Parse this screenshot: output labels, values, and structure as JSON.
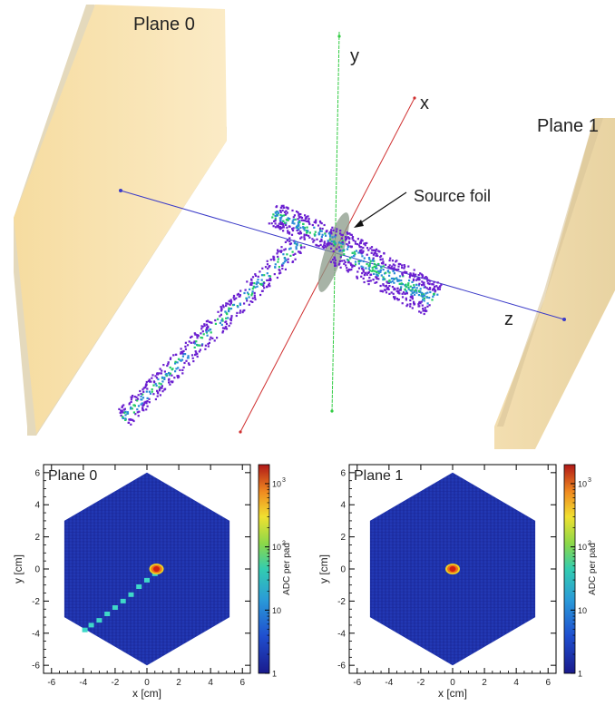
{
  "scene": {
    "labels": {
      "plane0": "Plane 0",
      "plane1": "Plane 1",
      "source_foil": "Source foil",
      "axis_x": "x",
      "axis_y": "y",
      "axis_z": "z"
    },
    "colors": {
      "plane": "#fbe7b9",
      "axis_x": "#cc2222",
      "axis_y": "#33cc33",
      "axis_z": "#3333cc",
      "foil": "#8a9a88",
      "hits": "#6a1fd0",
      "hits_core": "#2a8ad8",
      "hits_hot": "#22cc66"
    }
  },
  "panels": [
    {
      "title": "Plane 0",
      "xlabel": "x [cm]",
      "ylabel": "y [cm]",
      "zlabel": "ADC per pad",
      "xticks": [
        "-6",
        "-4",
        "-2",
        "0",
        "2",
        "4",
        "6"
      ],
      "yticks": [
        "6",
        "4",
        "2",
        "0",
        "-2",
        "-4",
        "-6"
      ],
      "zticks": [
        "1",
        "10",
        "10",
        "10"
      ],
      "zexps": [
        "",
        "",
        "2",
        "3"
      ],
      "xlim": [
        -6.5,
        6.5
      ],
      "ylim": [
        -6.5,
        6.5
      ],
      "hexagon_radius_cm": 6.0,
      "background_color": "#1a2a9a"
    },
    {
      "title": "Plane 1",
      "xlabel": "x [cm]",
      "ylabel": "y [cm]",
      "zlabel": "ADC per pad",
      "xticks": [
        "-6",
        "-4",
        "-2",
        "0",
        "2",
        "4",
        "6"
      ],
      "yticks": [
        "6",
        "4",
        "2",
        "0",
        "-2",
        "-4",
        "-6"
      ],
      "zticks": [
        "1",
        "10",
        "10",
        "10"
      ],
      "zexps": [
        "",
        "",
        "2",
        "3"
      ],
      "xlim": [
        -6.5,
        6.5
      ],
      "ylim": [
        -6.5,
        6.5
      ],
      "hexagon_radius_cm": 6.0,
      "background_color": "#1a2a9a"
    }
  ],
  "chart_data": [
    {
      "type": "heatmap",
      "title": "Plane 0",
      "xlabel": "x [cm]",
      "ylabel": "y [cm]",
      "zlabel": "ADC per pad",
      "xlim": [
        -6.5,
        6.5
      ],
      "ylim": [
        -6.5,
        6.5
      ],
      "zscale": "log",
      "zlim": [
        1,
        2000
      ],
      "hot_spot": {
        "x": 0.6,
        "y": 0.0,
        "peak_adc": 1000
      },
      "track": [
        {
          "x": 0.5,
          "y": -0.3,
          "adc": 60
        },
        {
          "x": 0.0,
          "y": -0.7,
          "adc": 40
        },
        {
          "x": -0.5,
          "y": -1.1,
          "adc": 40
        },
        {
          "x": -1.0,
          "y": -1.6,
          "adc": 35
        },
        {
          "x": -1.5,
          "y": -2.0,
          "adc": 35
        },
        {
          "x": -2.0,
          "y": -2.4,
          "adc": 35
        },
        {
          "x": -2.5,
          "y": -2.8,
          "adc": 35
        },
        {
          "x": -3.0,
          "y": -3.2,
          "adc": 35
        },
        {
          "x": -3.5,
          "y": -3.5,
          "adc": 35
        },
        {
          "x": -3.9,
          "y": -3.8,
          "adc": 35
        }
      ]
    },
    {
      "type": "heatmap",
      "title": "Plane 1",
      "xlabel": "x [cm]",
      "ylabel": "y [cm]",
      "zlabel": "ADC per pad",
      "xlim": [
        -6.5,
        6.5
      ],
      "ylim": [
        -6.5,
        6.5
      ],
      "zscale": "log",
      "zlim": [
        1,
        2000
      ],
      "hot_spot": {
        "x": 0.0,
        "y": 0.0,
        "peak_adc": 1000
      },
      "track": []
    }
  ]
}
